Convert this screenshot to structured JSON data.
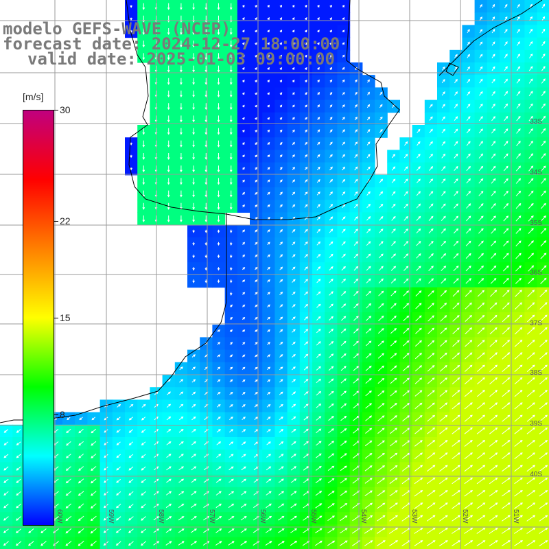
{
  "header": {
    "title": "modelo GEFS-WAVE (NCEP)",
    "forecast": "forecast date: 2024-12-27 18:00:00",
    "valid": "valid date: 2025-01-03 09:00:00"
  },
  "colorbar": {
    "units": "[m/s]",
    "min": 0,
    "max": 30,
    "ticks": [
      {
        "value": 30,
        "label": "30"
      },
      {
        "value": 22,
        "label": "22"
      },
      {
        "value": 15,
        "label": "15"
      },
      {
        "value": 8,
        "label": "8"
      }
    ],
    "stops": [
      "#0000ff",
      "#00ffff",
      "#00ff00",
      "#ffff00",
      "#ff8000",
      "#ff0000",
      "#c0007f"
    ]
  },
  "map": {
    "longitude_labels": [
      "60W",
      "59W",
      "58W",
      "57W",
      "56W",
      "55W",
      "54W",
      "53W",
      "52W",
      "51W"
    ],
    "latitude_labels": [
      "33S",
      "34S",
      "35S",
      "36S",
      "37S",
      "38S",
      "39S",
      "40S"
    ],
    "grid_color": "#9a9a9a",
    "arrow_color": "#ffffff",
    "coast_color": "#000000"
  }
}
